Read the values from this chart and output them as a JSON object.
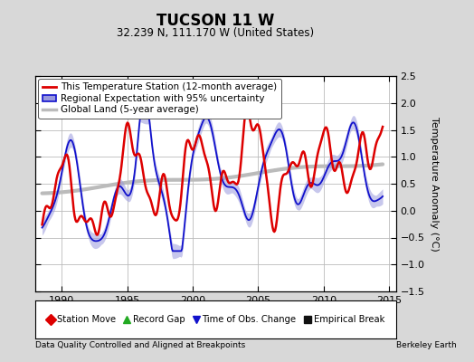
{
  "title": "TUCSON 11 W",
  "subtitle": "32.239 N, 111.170 W (United States)",
  "ylabel": "Temperature Anomaly (°C)",
  "footer_left": "Data Quality Controlled and Aligned at Breakpoints",
  "footer_right": "Berkeley Earth",
  "xlim": [
    1988.0,
    2015.5
  ],
  "ylim": [
    -1.5,
    2.5
  ],
  "yticks": [
    -1.5,
    -1.0,
    -0.5,
    0.0,
    0.5,
    1.0,
    1.5,
    2.0,
    2.5
  ],
  "xticks": [
    1990,
    1995,
    2000,
    2005,
    2010,
    2015
  ],
  "bg_color": "#d8d8d8",
  "plot_bg_color": "#ffffff",
  "grid_color": "#bbbbbb",
  "station_color": "#dd0000",
  "regional_color": "#1111cc",
  "regional_fill_color": "#9999dd",
  "global_color": "#bbbbbb",
  "global_lw": 3.0,
  "regional_lw": 1.3,
  "station_lw": 1.8,
  "legend_fontsize": 7.5,
  "bottom_legend": [
    {
      "label": "Station Move",
      "color": "#dd0000",
      "marker": "D"
    },
    {
      "label": "Record Gap",
      "color": "#22aa22",
      "marker": "^"
    },
    {
      "label": "Time of Obs. Change",
      "color": "#1111cc",
      "marker": "v"
    },
    {
      "label": "Empirical Break",
      "color": "#111111",
      "marker": "s"
    }
  ]
}
